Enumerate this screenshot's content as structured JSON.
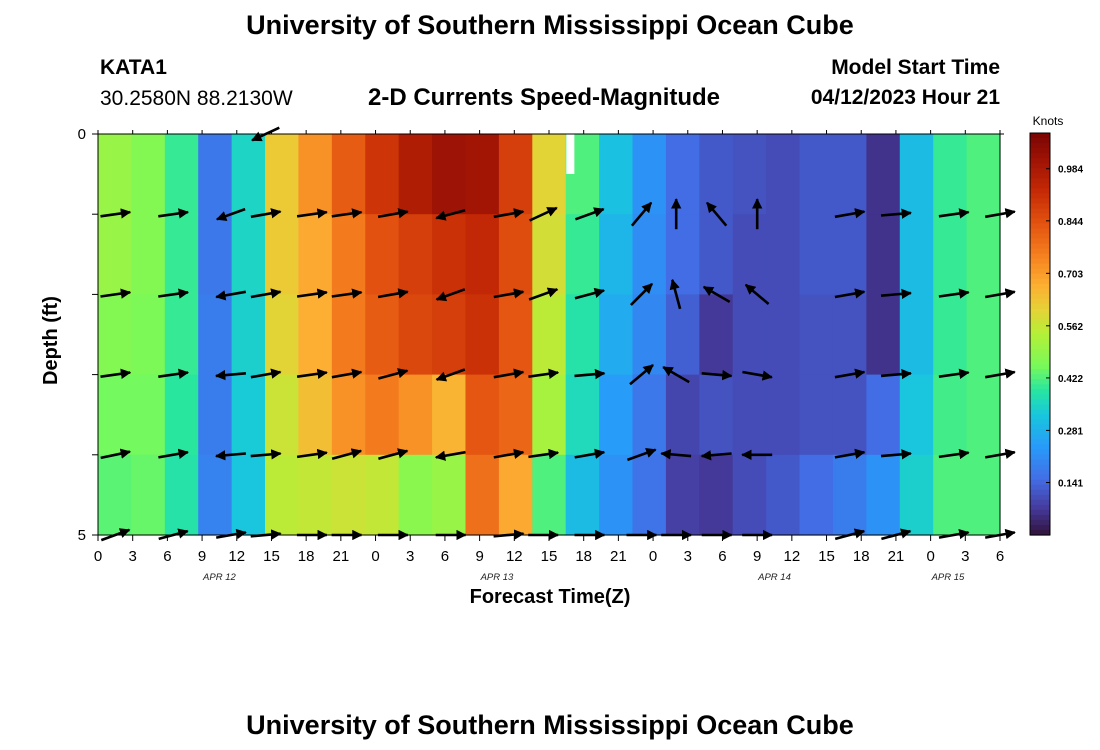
{
  "header": {
    "title": "University of Southern Mississippi Ocean Cube",
    "station_id": "KATA1",
    "station_coords": "30.2580N  88.2130W",
    "plot_title": "2-D Currents Speed-Magnitude",
    "model_start_label": "Model Start Time",
    "model_start_value": "04/12/2023 Hour 21"
  },
  "footer": {
    "title": "University of Southern Mississippi Ocean Cube"
  },
  "chart_data": {
    "type": "heatmap",
    "title": "2-D Currents Speed-Magnitude",
    "xlabel": "Forecast Time(Z)",
    "ylabel": "Depth (ft)",
    "y_ticks": [
      "0",
      "5"
    ],
    "x_ticks": [
      "0",
      "3",
      "6",
      "9",
      "12",
      "15",
      "18",
      "21",
      "0",
      "3",
      "6",
      "9",
      "12",
      "15",
      "18",
      "21",
      "0",
      "3",
      "6",
      "9",
      "12",
      "15",
      "18",
      "21",
      "0",
      "3",
      "6"
    ],
    "date_labels": [
      "APR 12",
      "APR 13",
      "APR 14",
      "APR 15"
    ],
    "colorbar": {
      "title": "Knots",
      "ticks": [
        "0.984",
        "0.844",
        "0.703",
        "0.562",
        "0.422",
        "0.281",
        "0.141"
      ],
      "range": [
        0.0,
        1.08
      ]
    },
    "x_hours_range": [
      0,
      78
    ],
    "depth_rows": 5,
    "speed_grid_knots": [
      [
        0.5,
        0.47,
        0.4,
        0.17,
        0.35,
        0.62,
        0.72,
        0.82,
        0.9,
        0.97,
        1.01,
        1.0,
        0.88,
        0.6,
        0.42,
        0.31,
        0.22,
        0.15,
        0.12,
        0.11,
        0.1,
        0.12,
        0.12,
        0.06,
        0.3,
        0.4,
        0.42
      ],
      [
        0.5,
        0.47,
        0.4,
        0.17,
        0.35,
        0.62,
        0.68,
        0.76,
        0.84,
        0.88,
        0.91,
        0.93,
        0.85,
        0.58,
        0.4,
        0.29,
        0.21,
        0.15,
        0.12,
        0.1,
        0.1,
        0.12,
        0.12,
        0.06,
        0.3,
        0.4,
        0.42
      ],
      [
        0.47,
        0.46,
        0.4,
        0.18,
        0.34,
        0.6,
        0.67,
        0.76,
        0.82,
        0.86,
        0.88,
        0.91,
        0.83,
        0.55,
        0.38,
        0.27,
        0.2,
        0.13,
        0.07,
        0.1,
        0.1,
        0.11,
        0.11,
        0.06,
        0.3,
        0.4,
        0.42
      ],
      [
        0.45,
        0.45,
        0.39,
        0.18,
        0.33,
        0.57,
        0.64,
        0.72,
        0.76,
        0.72,
        0.66,
        0.83,
        0.8,
        0.52,
        0.36,
        0.24,
        0.17,
        0.09,
        0.11,
        0.1,
        0.1,
        0.11,
        0.11,
        0.15,
        0.32,
        0.41,
        0.42
      ],
      [
        0.43,
        0.44,
        0.38,
        0.19,
        0.32,
        0.55,
        0.56,
        0.57,
        0.56,
        0.48,
        0.5,
        0.78,
        0.68,
        0.42,
        0.3,
        0.22,
        0.16,
        0.08,
        0.07,
        0.1,
        0.12,
        0.15,
        0.18,
        0.22,
        0.34,
        0.42,
        0.42
      ]
    ],
    "vector_columns_hours": [
      1.5,
      6.5,
      11.5,
      14.5,
      18.5,
      21.5,
      25.5,
      30.5,
      35.5,
      38.5,
      42.5,
      47,
      50,
      53.5,
      57,
      59,
      62,
      65,
      69,
      74,
      78
    ],
    "vector_angles_deg": [
      [
        null,
        null,
        null,
        -155,
        null,
        null,
        null,
        null,
        null,
        null,
        null,
        null,
        null,
        null,
        null,
        null,
        null,
        null,
        null,
        null,
        null
      ],
      [
        8,
        8,
        -160,
        10,
        8,
        8,
        10,
        -165,
        10,
        25,
        20,
        50,
        90,
        130,
        90,
        null,
        null,
        10,
        5,
        8,
        10
      ],
      [
        8,
        8,
        -170,
        10,
        8,
        8,
        10,
        -160,
        10,
        20,
        15,
        45,
        105,
        150,
        140,
        null,
        null,
        10,
        5,
        8,
        10
      ],
      [
        8,
        8,
        -175,
        10,
        8,
        10,
        15,
        -160,
        10,
        8,
        5,
        40,
        150,
        -5,
        -10,
        null,
        null,
        10,
        5,
        8,
        10
      ],
      [
        12,
        10,
        -175,
        5,
        8,
        15,
        15,
        -170,
        10,
        8,
        10,
        20,
        175,
        -175,
        180,
        null,
        null,
        10,
        5,
        8,
        10
      ],
      [
        20,
        15,
        10,
        5,
        0,
        0,
        0,
        0,
        5,
        0,
        0,
        0,
        0,
        0,
        0,
        null,
        null,
        15,
        15,
        10,
        10
      ]
    ]
  }
}
